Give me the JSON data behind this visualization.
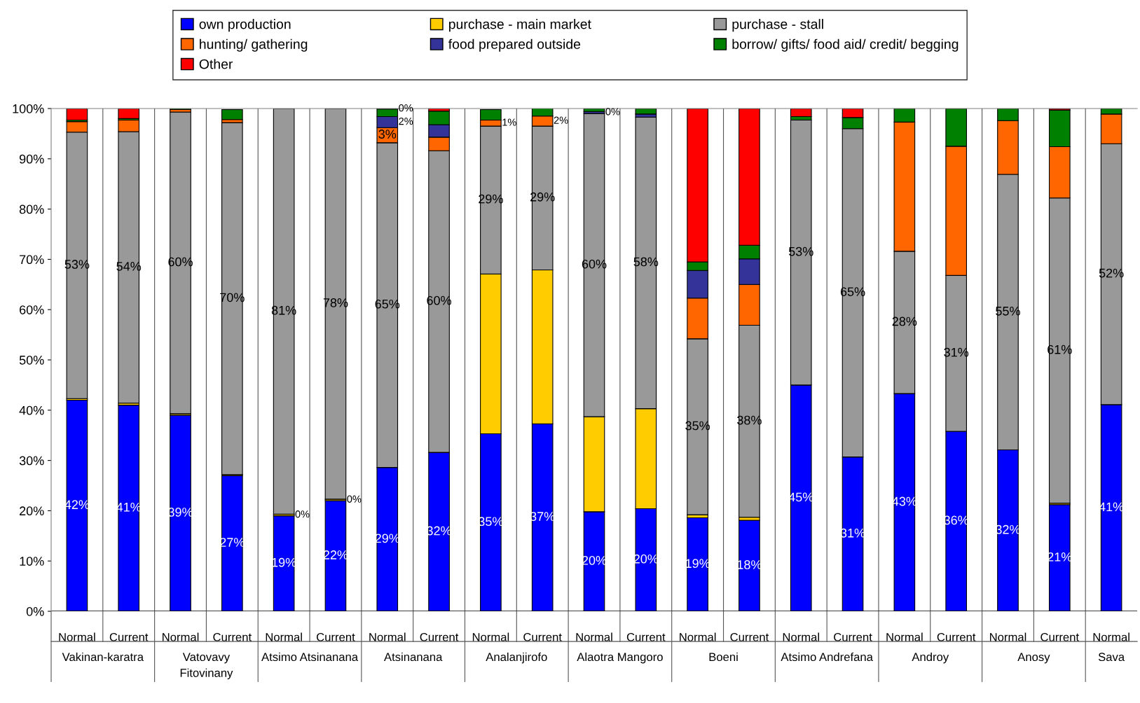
{
  "chart_data": {
    "type": "bar",
    "stacked": true,
    "legend": "top",
    "grid": false,
    "categories": [
      "Normal",
      "Current",
      "Normal",
      "Current",
      "Normal",
      "Current",
      "Normal",
      "Current",
      "Normal",
      "Current",
      "Normal",
      "Current",
      "Normal",
      "Current",
      "Normal",
      "Current",
      "Normal",
      "Current",
      "Normal",
      "Current",
      "Normal"
    ],
    "annotations": [
      "Vakinan-karatra",
      "Vatovavy\nFitovinany",
      "Atsimo Atsinanana",
      "Atsinanana",
      "Analanjirofo",
      "Alaotra Mangoro",
      "Boeni",
      "Atsimo Andrefana",
      "Androy",
      "Anosy",
      "Sava"
    ],
    "ylim": [
      0,
      100
    ],
    "yticks": [
      {
        "value": 0,
        "label": "0%"
      },
      {
        "value": 10,
        "label": "10%"
      },
      {
        "value": 20,
        "label": "20%"
      },
      {
        "value": 30,
        "label": "30%"
      },
      {
        "value": 40,
        "label": "40%"
      },
      {
        "value": 50,
        "label": "50%"
      },
      {
        "value": 60,
        "label": "60%"
      },
      {
        "value": 70,
        "label": "70%"
      },
      {
        "value": 80,
        "label": "80%"
      },
      {
        "value": 90,
        "label": "90%"
      },
      {
        "value": 100,
        "label": "100%"
      }
    ],
    "series": [
      {
        "name": "own production",
        "color": "#0000ff",
        "values": [
          42,
          41,
          39,
          27,
          19,
          22,
          28.6,
          31.6,
          35.3,
          37.3,
          19.8,
          20.4,
          18.6,
          18.1,
          45,
          30.7,
          43.3,
          35.8,
          32.1,
          21.2,
          41.1
        ],
        "value_labels": [
          "42%",
          "41%",
          "39%",
          "27%",
          "19%",
          "22%",
          "29%",
          "32%",
          "35%",
          "37%",
          "20%",
          "20%",
          "19%",
          "18%",
          "45%",
          "31%",
          "43%",
          "36%",
          "32%",
          "21%",
          "41%"
        ]
      },
      {
        "name": "purchase - main market",
        "color": "#ffcc00",
        "values": [
          0.3,
          0.4,
          0.3,
          0.2,
          0.3,
          0.3,
          null,
          null,
          31.8,
          30.6,
          18.9,
          19.9,
          0.6,
          0.6,
          null,
          null,
          null,
          null,
          null,
          0.3,
          null
        ],
        "value_labels": [
          null,
          null,
          null,
          null,
          "0%",
          "0%",
          null,
          null,
          null,
          null,
          null,
          null,
          null,
          null,
          null,
          null,
          null,
          null,
          null,
          null,
          null
        ]
      },
      {
        "name": "purchase - stall",
        "color": "#999999",
        "values": [
          53,
          54,
          60,
          70,
          80.7,
          77.7,
          64.6,
          60,
          29.4,
          28.6,
          60.3,
          58,
          35,
          38.2,
          52.7,
          65.3,
          28.3,
          31,
          54.8,
          60.7,
          51.9
        ],
        "value_labels": [
          "53%",
          "54%",
          "60%",
          "70%",
          "81%",
          "78%",
          "65%",
          "60%",
          "29%",
          "29%",
          "60%",
          "58%",
          "35%",
          "38%",
          "53%",
          "65%",
          "28%",
          "31%",
          "55%",
          "61%",
          "52%"
        ]
      },
      {
        "name": "hunting/ gathering",
        "color": "#ff6600",
        "values": [
          2.1,
          2.3,
          0.5,
          0.6,
          null,
          null,
          3,
          2.7,
          1.2,
          2,
          null,
          null,
          8.1,
          8.1,
          null,
          null,
          25.7,
          25.7,
          10.7,
          10.2,
          5.9
        ],
        "value_labels": [
          null,
          null,
          null,
          null,
          null,
          null,
          "3%",
          null,
          "1%",
          "2%",
          null,
          null,
          null,
          null,
          null,
          null,
          null,
          null,
          null,
          null,
          null
        ]
      },
      {
        "name": "food prepared outside",
        "color": "#333399",
        "values": [
          null,
          null,
          null,
          null,
          null,
          null,
          2.2,
          2.5,
          null,
          null,
          0.4,
          0.6,
          5.5,
          5.1,
          null,
          null,
          null,
          null,
          null,
          null,
          null
        ],
        "value_labels": [
          null,
          null,
          null,
          null,
          null,
          null,
          "2%",
          null,
          null,
          null,
          "0%",
          null,
          null,
          null,
          null,
          null,
          null,
          null,
          null,
          null,
          null
        ]
      },
      {
        "name": "borrow/ gifts/ food aid/ credit/ begging",
        "color": "#008000",
        "values": [
          0.3,
          0.3,
          0.2,
          2,
          null,
          null,
          1.5,
          2.7,
          2.1,
          1.6,
          0.6,
          1.1,
          1.7,
          2.7,
          0.7,
          2.2,
          2.7,
          7.5,
          2.4,
          7.3,
          1.1
        ]
      },
      {
        "name": "Other",
        "color": "#ff0000",
        "values": [
          2.3,
          2,
          null,
          null,
          null,
          null,
          0.1,
          0.5,
          null,
          null,
          null,
          null,
          30.5,
          27.2,
          1.6,
          1.8,
          null,
          null,
          null,
          0.3,
          null
        ],
        "value_labels": [
          null,
          null,
          null,
          null,
          null,
          null,
          "0%",
          null,
          null,
          null,
          null,
          null,
          null,
          null,
          null,
          null,
          null,
          null,
          null,
          null,
          null
        ]
      }
    ]
  }
}
